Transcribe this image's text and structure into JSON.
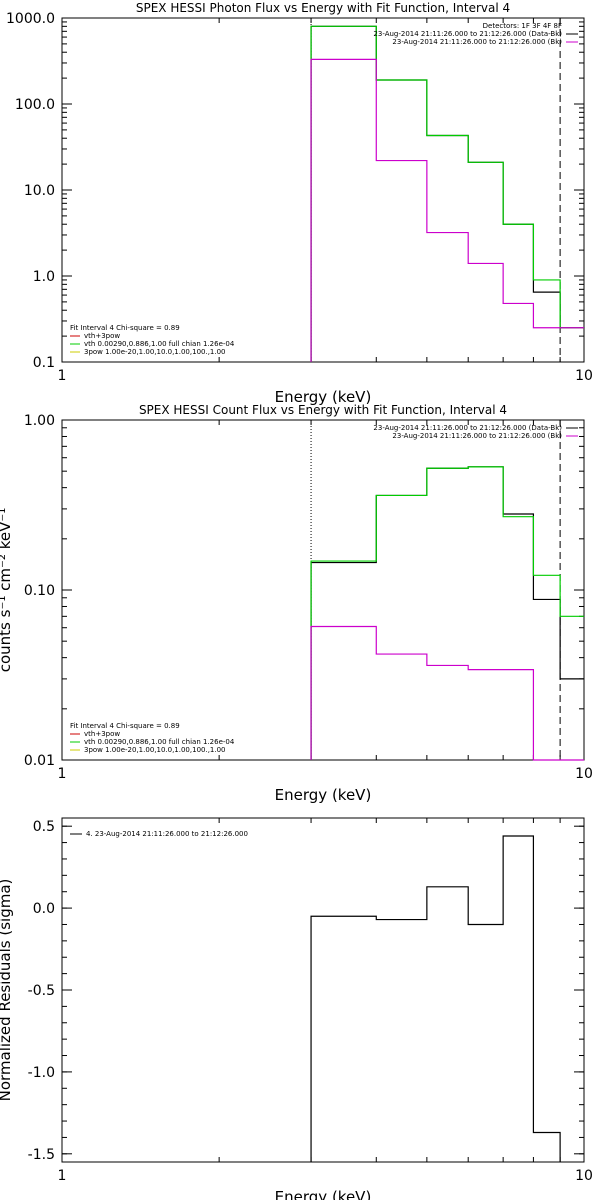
{
  "chart_data": [
    {
      "type": "line",
      "title": "SPEX HESSI Photon Flux vs Energy with Fit Function, Interval 4",
      "xlabel": "Energy (keV)",
      "ylabel": "",
      "xscale": "log",
      "yscale": "log",
      "xlim": [
        1,
        10
      ],
      "ylim": [
        0.1,
        1000
      ],
      "xticks": [
        "1",
        "10"
      ],
      "yticks": [
        "0.1",
        "1.0",
        "10.0",
        "100.0",
        "1000.0"
      ],
      "steps": [
        3,
        4,
        5,
        6,
        7,
        8,
        9,
        10
      ],
      "series": [
        {
          "color": "#000000",
          "values": [
            800,
            190,
            43,
            21,
            4.0,
            0.65,
            0.25
          ]
        },
        {
          "color": "#00cc00",
          "values": [
            800,
            190,
            43,
            21,
            4.0,
            0.9,
            0.25
          ]
        },
        {
          "color": "#cc00cc",
          "values": [
            330,
            22,
            3.2,
            1.4,
            0.48,
            0.25,
            0.25
          ]
        }
      ],
      "vlines": [
        {
          "x": 3,
          "style": "dotted"
        },
        {
          "x": 9,
          "style": "dashed"
        }
      ],
      "legend_top_right": [
        {
          "text": "Detectors: 1F 3F 4F 8F",
          "color": ""
        },
        {
          "text": "23-Aug-2014 21:11:26.000 to 21:12:26.000 (Data-Bk)",
          "color": "#000000"
        },
        {
          "text": "23-Aug-2014 21:11:26.000 to 21:12:26.000 (Bk)",
          "color": "#cc00cc"
        }
      ],
      "legend_bottom_left": [
        {
          "text": "Fit Interval 4   Chi-square = 0.89",
          "color": ""
        },
        {
          "text": "vth+3pow",
          "color": "#cc0000"
        },
        {
          "text": "vth 0.00290,0.886,1.00   full chian 1.26e-04",
          "color": "#00cc00"
        },
        {
          "text": "3pow 1.00e-20,1.00,10.0,1.00,100.,1.00",
          "color": "#cccc00"
        }
      ]
    },
    {
      "type": "line",
      "title": "SPEX HESSI Count Flux vs Energy with Fit Function, Interval 4",
      "xlabel": "Energy (keV)",
      "ylabel": "counts s⁻¹ cm⁻² keV⁻¹",
      "xscale": "log",
      "yscale": "log",
      "xlim": [
        1,
        10
      ],
      "ylim": [
        0.01,
        1
      ],
      "xticks": [
        "1",
        "10"
      ],
      "yticks": [
        "0.01",
        "0.10",
        "1.00"
      ],
      "steps": [
        3,
        4,
        5,
        6,
        7,
        8,
        9,
        10
      ],
      "series": [
        {
          "color": "#000000",
          "values": [
            0.145,
            0.36,
            0.52,
            0.53,
            0.28,
            0.088,
            0.03
          ]
        },
        {
          "color": "#00cc00",
          "values": [
            0.148,
            0.36,
            0.52,
            0.53,
            0.27,
            0.122,
            0.07
          ]
        },
        {
          "color": "#cc00cc",
          "values": [
            0.061,
            0.042,
            0.036,
            0.034,
            0.034,
            0.01,
            0.01
          ]
        }
      ],
      "vlines": [
        {
          "x": 3,
          "style": "dotted"
        },
        {
          "x": 9,
          "style": "dashed"
        }
      ],
      "legend_top_right": [
        {
          "text": "23-Aug-2014 21:11:26.000 to 21:12:26.000 (Data-Bk)",
          "color": "#000000"
        },
        {
          "text": "23-Aug-2014 21:11:26.000 to 21:12:26.000 (Bk)",
          "color": "#cc00cc"
        }
      ],
      "legend_bottom_left": [
        {
          "text": "Fit Interval 4   Chi-square = 0.89",
          "color": ""
        },
        {
          "text": "vth+3pow",
          "color": "#cc0000"
        },
        {
          "text": "vth 0.00290,0.886,1.00   full chian 1.26e-04",
          "color": "#00cc00"
        },
        {
          "text": "3pow 1.00e-20,1.00,10.0,1.00,100.,1.00",
          "color": "#cccc00"
        }
      ]
    },
    {
      "type": "line",
      "title": "",
      "xlabel": "Energy (keV)",
      "ylabel": "Normalized Residuals (sigma)",
      "xscale": "log",
      "yscale": "linear",
      "xlim": [
        1,
        10
      ],
      "ylim": [
        -1.55,
        0.55
      ],
      "xticks": [
        "1",
        "10"
      ],
      "yticks": [
        "-1.5",
        "-1.0",
        "-0.5",
        "0.0",
        "0.5"
      ],
      "steps": [
        3,
        4,
        5,
        6,
        7,
        8,
        9
      ],
      "series": [
        {
          "color": "#000000",
          "values": [
            -0.05,
            -0.07,
            0.13,
            -0.1,
            0.44,
            -1.37
          ]
        }
      ],
      "vlines": [],
      "legend_top_left": [
        {
          "text": "4. 23-Aug-2014 21:11:26.000 to 21:12:26.000",
          "color": "#000000"
        }
      ]
    }
  ]
}
